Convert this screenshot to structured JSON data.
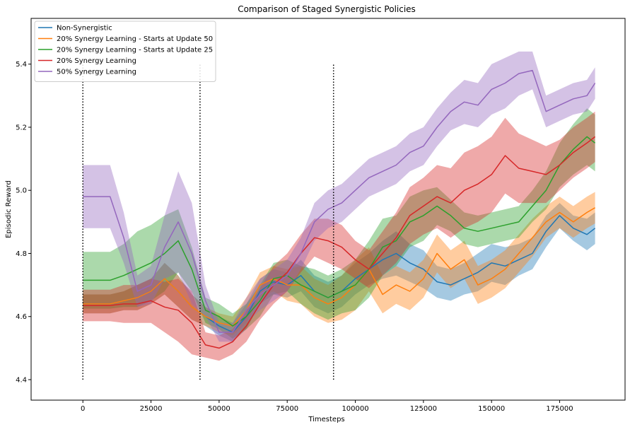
{
  "chart_data": {
    "type": "line",
    "title": "Comparison of Staged Synergistic Policies",
    "xlabel": "Timesteps",
    "ylabel": "Episodic Reward",
    "xlim": [
      -19000,
      199000
    ],
    "ylim": [
      4.335,
      5.545
    ],
    "x_ticks": [
      0,
      25000,
      50000,
      75000,
      100000,
      125000,
      150000,
      175000
    ],
    "y_ticks": [
      4.4,
      4.6,
      4.8,
      5.0,
      5.2,
      5.4
    ],
    "grid": false,
    "legend_position": "top-left",
    "vertical_markers": [
      {
        "x": 0,
        "y_range": [
          4.4,
          5.4
        ]
      },
      {
        "x": 43000,
        "y_range": [
          4.4,
          5.4
        ]
      },
      {
        "x": 92000,
        "y_range": [
          4.4,
          5.4
        ]
      }
    ],
    "series": [
      {
        "name": "Non-Synergistic",
        "color": "#1f77b4",
        "x": [
          0,
          10000,
          15000,
          20000,
          25000,
          30000,
          35000,
          40000,
          45000,
          50000,
          55000,
          60000,
          65000,
          70000,
          75000,
          80000,
          85000,
          90000,
          95000,
          100000,
          105000,
          110000,
          115000,
          120000,
          125000,
          130000,
          135000,
          140000,
          145000,
          150000,
          155000,
          160000,
          165000,
          170000,
          175000,
          180000,
          185000,
          188000
        ],
        "y": [
          4.64,
          4.64,
          4.65,
          4.66,
          4.68,
          4.72,
          4.68,
          4.63,
          4.6,
          4.57,
          4.55,
          4.6,
          4.68,
          4.71,
          4.7,
          4.73,
          4.68,
          4.66,
          4.68,
          4.72,
          4.75,
          4.78,
          4.8,
          4.77,
          4.75,
          4.71,
          4.7,
          4.72,
          4.74,
          4.77,
          4.76,
          4.78,
          4.8,
          4.87,
          4.92,
          4.88,
          4.86,
          4.88
        ],
        "band": [
          0.03,
          0.03,
          0.03,
          0.04,
          0.04,
          0.05,
          0.05,
          0.04,
          0.03,
          0.03,
          0.03,
          0.04,
          0.04,
          0.04,
          0.04,
          0.05,
          0.05,
          0.05,
          0.05,
          0.05,
          0.05,
          0.06,
          0.07,
          0.06,
          0.06,
          0.05,
          0.05,
          0.05,
          0.06,
          0.06,
          0.06,
          0.05,
          0.05,
          0.05,
          0.04,
          0.04,
          0.05,
          0.05
        ]
      },
      {
        "name": "20% Synergy Learning - Starts at Update 50",
        "color": "#ff7f0e",
        "x": [
          0,
          10000,
          15000,
          20000,
          25000,
          30000,
          35000,
          40000,
          45000,
          50000,
          55000,
          60000,
          65000,
          70000,
          75000,
          80000,
          85000,
          90000,
          95000,
          100000,
          105000,
          110000,
          115000,
          120000,
          125000,
          130000,
          135000,
          140000,
          145000,
          150000,
          155000,
          160000,
          165000,
          170000,
          175000,
          180000,
          185000,
          188000
        ],
        "y": [
          4.64,
          4.64,
          4.65,
          4.66,
          4.68,
          4.72,
          4.68,
          4.63,
          4.6,
          4.58,
          4.57,
          4.62,
          4.7,
          4.72,
          4.7,
          4.7,
          4.66,
          4.64,
          4.66,
          4.7,
          4.75,
          4.67,
          4.7,
          4.68,
          4.72,
          4.8,
          4.75,
          4.78,
          4.7,
          4.72,
          4.75,
          4.8,
          4.85,
          4.9,
          4.93,
          4.9,
          4.93,
          4.945
        ],
        "band": [
          0.03,
          0.03,
          0.03,
          0.04,
          0.04,
          0.05,
          0.05,
          0.04,
          0.03,
          0.03,
          0.03,
          0.04,
          0.04,
          0.04,
          0.05,
          0.06,
          0.06,
          0.06,
          0.07,
          0.08,
          0.07,
          0.06,
          0.06,
          0.06,
          0.06,
          0.06,
          0.06,
          0.06,
          0.06,
          0.06,
          0.06,
          0.06,
          0.06,
          0.05,
          0.05,
          0.05,
          0.05,
          0.05
        ]
      },
      {
        "name": "20% Synergy Learning - Starts at Update 25",
        "color": "#2ca02c",
        "x": [
          0,
          10000,
          15000,
          20000,
          25000,
          30000,
          35000,
          40000,
          45000,
          50000,
          55000,
          60000,
          65000,
          70000,
          75000,
          80000,
          85000,
          90000,
          95000,
          100000,
          105000,
          110000,
          115000,
          120000,
          125000,
          130000,
          135000,
          140000,
          145000,
          150000,
          155000,
          160000,
          165000,
          170000,
          175000,
          180000,
          185000,
          188000
        ],
        "y": [
          4.715,
          4.715,
          4.73,
          4.75,
          4.77,
          4.8,
          4.84,
          4.75,
          4.62,
          4.6,
          4.57,
          4.6,
          4.65,
          4.72,
          4.73,
          4.7,
          4.68,
          4.66,
          4.68,
          4.7,
          4.75,
          4.82,
          4.84,
          4.9,
          4.92,
          4.95,
          4.92,
          4.88,
          4.87,
          4.88,
          4.89,
          4.9,
          4.95,
          5.0,
          5.08,
          5.13,
          5.17,
          5.15
        ],
        "band": [
          0.09,
          0.09,
          0.1,
          0.12,
          0.12,
          0.12,
          0.1,
          0.07,
          0.04,
          0.04,
          0.04,
          0.04,
          0.05,
          0.05,
          0.05,
          0.06,
          0.07,
          0.07,
          0.07,
          0.08,
          0.09,
          0.09,
          0.08,
          0.08,
          0.08,
          0.06,
          0.05,
          0.05,
          0.05,
          0.05,
          0.05,
          0.05,
          0.05,
          0.06,
          0.07,
          0.08,
          0.09,
          0.09
        ]
      },
      {
        "name": "20% Synergy Learning",
        "color": "#d62728",
        "x": [
          0,
          10000,
          15000,
          20000,
          25000,
          30000,
          35000,
          40000,
          45000,
          50000,
          55000,
          60000,
          65000,
          70000,
          75000,
          80000,
          85000,
          90000,
          95000,
          100000,
          105000,
          110000,
          115000,
          120000,
          125000,
          130000,
          135000,
          140000,
          145000,
          150000,
          155000,
          160000,
          165000,
          170000,
          175000,
          180000,
          185000,
          188000
        ],
        "y": [
          4.635,
          4.635,
          4.64,
          4.64,
          4.65,
          4.63,
          4.62,
          4.58,
          4.51,
          4.5,
          4.52,
          4.57,
          4.64,
          4.7,
          4.74,
          4.8,
          4.85,
          4.84,
          4.82,
          4.78,
          4.75,
          4.8,
          4.85,
          4.92,
          4.95,
          4.98,
          4.96,
          5.0,
          5.02,
          5.05,
          5.11,
          5.07,
          5.06,
          5.05,
          5.08,
          5.12,
          5.15,
          5.17
        ],
        "band": [
          0.05,
          0.05,
          0.06,
          0.06,
          0.07,
          0.08,
          0.1,
          0.1,
          0.04,
          0.04,
          0.04,
          0.05,
          0.05,
          0.06,
          0.06,
          0.06,
          0.06,
          0.07,
          0.07,
          0.06,
          0.06,
          0.07,
          0.08,
          0.09,
          0.09,
          0.1,
          0.11,
          0.12,
          0.12,
          0.12,
          0.12,
          0.11,
          0.1,
          0.09,
          0.08,
          0.08,
          0.08,
          0.08
        ]
      },
      {
        "name": "50% Synergy Learning",
        "color": "#9467bd",
        "x": [
          0,
          10000,
          15000,
          20000,
          25000,
          30000,
          35000,
          40000,
          45000,
          50000,
          55000,
          60000,
          65000,
          70000,
          75000,
          80000,
          85000,
          90000,
          95000,
          100000,
          105000,
          110000,
          115000,
          120000,
          125000,
          130000,
          135000,
          140000,
          145000,
          150000,
          155000,
          160000,
          165000,
          170000,
          175000,
          180000,
          185000,
          188000
        ],
        "y": [
          4.98,
          4.98,
          4.85,
          4.68,
          4.7,
          4.82,
          4.9,
          4.8,
          4.65,
          4.55,
          4.55,
          4.62,
          4.67,
          4.7,
          4.73,
          4.8,
          4.9,
          4.94,
          4.96,
          5.0,
          5.04,
          5.06,
          5.08,
          5.12,
          5.14,
          5.2,
          5.25,
          5.28,
          5.27,
          5.32,
          5.34,
          5.37,
          5.38,
          5.25,
          5.27,
          5.29,
          5.3,
          5.34
        ],
        "band": [
          0.1,
          0.1,
          0.08,
          0.05,
          0.06,
          0.1,
          0.16,
          0.16,
          0.05,
          0.03,
          0.03,
          0.04,
          0.05,
          0.05,
          0.05,
          0.05,
          0.06,
          0.06,
          0.06,
          0.06,
          0.06,
          0.06,
          0.06,
          0.06,
          0.06,
          0.06,
          0.06,
          0.07,
          0.07,
          0.08,
          0.08,
          0.07,
          0.06,
          0.05,
          0.05,
          0.05,
          0.05,
          0.05
        ]
      }
    ]
  }
}
